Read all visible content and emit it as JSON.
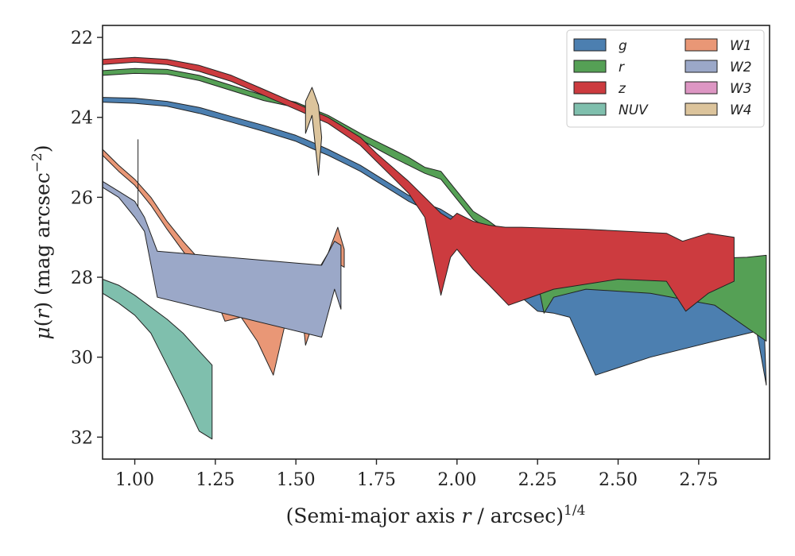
{
  "chart_data": {
    "type": "area",
    "xlabel_main": "(Semi-major axis ",
    "xlabel_r": "r",
    "xlabel_tail": " / arcsec)",
    "xlabel_sup": "1/4",
    "ylabel_mu": "μ",
    "ylabel_mid": "(",
    "ylabel_r": "r",
    "ylabel_tail": ") (mag arcsec",
    "ylabel_sup": "−2",
    "ylabel_close": ")",
    "xlim": [
      0.9,
      2.97
    ],
    "ylim": [
      32.55,
      21.7
    ],
    "y_inverted": true,
    "x_ticks": [
      1.0,
      1.25,
      1.5,
      1.75,
      2.0,
      2.25,
      2.5,
      2.75
    ],
    "x_tick_labels": [
      "1.00",
      "1.25",
      "1.50",
      "1.75",
      "2.00",
      "2.25",
      "2.50",
      "2.75"
    ],
    "y_ticks": [
      22,
      24,
      26,
      28,
      30,
      32
    ],
    "y_tick_labels": [
      "22",
      "24",
      "26",
      "28",
      "30",
      "32"
    ],
    "grid": false,
    "legend_position": "top-right",
    "series": [
      {
        "name": "g",
        "color": "#4c7fb0",
        "upper": [
          [
            0.9,
            23.5
          ],
          [
            1.0,
            23.52
          ],
          [
            1.1,
            23.6
          ],
          [
            1.2,
            23.75
          ],
          [
            1.3,
            23.98
          ],
          [
            1.4,
            24.2
          ],
          [
            1.5,
            24.45
          ],
          [
            1.55,
            24.62
          ],
          [
            1.6,
            24.8
          ],
          [
            1.65,
            25.0
          ],
          [
            1.7,
            25.2
          ],
          [
            1.75,
            25.45
          ],
          [
            1.8,
            25.7
          ],
          [
            1.85,
            25.95
          ],
          [
            1.9,
            26.15
          ],
          [
            1.95,
            26.3
          ],
          [
            2.0,
            26.55
          ],
          [
            2.05,
            26.95
          ],
          [
            2.1,
            27.2
          ],
          [
            2.15,
            27.5
          ],
          [
            2.2,
            27.7
          ],
          [
            2.3,
            27.85
          ],
          [
            2.5,
            28.0
          ],
          [
            2.7,
            28.3
          ],
          [
            2.9,
            28.4
          ],
          [
            2.95,
            28.5
          ]
        ],
        "lower": [
          [
            0.9,
            23.62
          ],
          [
            1.0,
            23.65
          ],
          [
            1.1,
            23.72
          ],
          [
            1.2,
            23.9
          ],
          [
            1.3,
            24.12
          ],
          [
            1.4,
            24.35
          ],
          [
            1.5,
            24.6
          ],
          [
            1.55,
            24.78
          ],
          [
            1.6,
            24.95
          ],
          [
            1.65,
            25.15
          ],
          [
            1.7,
            25.35
          ],
          [
            1.75,
            25.6
          ],
          [
            1.8,
            25.85
          ],
          [
            1.85,
            26.1
          ],
          [
            1.9,
            26.3
          ],
          [
            1.95,
            26.45
          ],
          [
            2.0,
            26.8
          ],
          [
            2.05,
            27.3
          ],
          [
            2.1,
            27.6
          ],
          [
            2.15,
            28.0
          ],
          [
            2.2,
            28.5
          ],
          [
            2.25,
            28.85
          ],
          [
            2.3,
            28.9
          ],
          [
            2.35,
            29.0
          ],
          [
            2.43,
            30.45
          ],
          [
            2.6,
            30.0
          ],
          [
            2.8,
            29.6
          ],
          [
            2.93,
            29.35
          ],
          [
            2.96,
            30.7
          ]
        ]
      },
      {
        "name": "r",
        "color": "#55a055",
        "upper": [
          [
            0.9,
            22.83
          ],
          [
            1.0,
            22.78
          ],
          [
            1.1,
            22.8
          ],
          [
            1.2,
            22.95
          ],
          [
            1.3,
            23.2
          ],
          [
            1.4,
            23.45
          ],
          [
            1.5,
            23.62
          ],
          [
            1.6,
            23.95
          ],
          [
            1.7,
            24.4
          ],
          [
            1.75,
            24.6
          ],
          [
            1.8,
            24.8
          ],
          [
            1.85,
            25.0
          ],
          [
            1.9,
            25.25
          ],
          [
            1.95,
            25.35
          ],
          [
            2.0,
            25.85
          ],
          [
            2.05,
            26.35
          ],
          [
            2.1,
            26.6
          ],
          [
            2.15,
            26.9
          ],
          [
            2.2,
            27.1
          ],
          [
            2.3,
            27.2
          ],
          [
            2.5,
            27.4
          ],
          [
            2.7,
            27.55
          ],
          [
            2.9,
            27.5
          ],
          [
            2.96,
            27.45
          ]
        ],
        "lower": [
          [
            0.9,
            22.95
          ],
          [
            1.0,
            22.9
          ],
          [
            1.1,
            22.92
          ],
          [
            1.2,
            23.08
          ],
          [
            1.3,
            23.33
          ],
          [
            1.4,
            23.58
          ],
          [
            1.5,
            23.75
          ],
          [
            1.6,
            24.1
          ],
          [
            1.7,
            24.55
          ],
          [
            1.75,
            24.78
          ],
          [
            1.8,
            25.0
          ],
          [
            1.85,
            25.2
          ],
          [
            1.9,
            25.4
          ],
          [
            1.95,
            25.55
          ],
          [
            2.0,
            26.05
          ],
          [
            2.05,
            26.55
          ],
          [
            2.1,
            26.8
          ],
          [
            2.15,
            27.1
          ],
          [
            2.2,
            27.4
          ],
          [
            2.25,
            28.1
          ],
          [
            2.27,
            28.9
          ],
          [
            2.3,
            28.5
          ],
          [
            2.4,
            28.3
          ],
          [
            2.6,
            28.4
          ],
          [
            2.8,
            28.7
          ],
          [
            2.96,
            29.6
          ]
        ]
      },
      {
        "name": "z",
        "color": "#cc3b3f",
        "upper": [
          [
            0.9,
            22.55
          ],
          [
            1.0,
            22.5
          ],
          [
            1.1,
            22.55
          ],
          [
            1.2,
            22.7
          ],
          [
            1.3,
            22.95
          ],
          [
            1.4,
            23.3
          ],
          [
            1.5,
            23.65
          ],
          [
            1.6,
            24.0
          ],
          [
            1.7,
            24.5
          ],
          [
            1.75,
            24.9
          ],
          [
            1.8,
            25.25
          ],
          [
            1.85,
            25.6
          ],
          [
            1.9,
            26.0
          ],
          [
            1.95,
            26.4
          ],
          [
            1.98,
            26.55
          ],
          [
            2.0,
            26.4
          ],
          [
            2.05,
            26.6
          ],
          [
            2.1,
            26.7
          ],
          [
            2.15,
            26.75
          ],
          [
            2.2,
            26.75
          ],
          [
            2.4,
            26.8
          ],
          [
            2.65,
            26.9
          ],
          [
            2.7,
            27.1
          ],
          [
            2.78,
            26.9
          ],
          [
            2.86,
            27.0
          ]
        ],
        "lower": [
          [
            0.9,
            22.68
          ],
          [
            1.0,
            22.62
          ],
          [
            1.1,
            22.68
          ],
          [
            1.2,
            22.85
          ],
          [
            1.3,
            23.1
          ],
          [
            1.4,
            23.45
          ],
          [
            1.5,
            23.8
          ],
          [
            1.6,
            24.15
          ],
          [
            1.7,
            24.7
          ],
          [
            1.75,
            25.1
          ],
          [
            1.8,
            25.5
          ],
          [
            1.85,
            25.9
          ],
          [
            1.9,
            26.5
          ],
          [
            1.95,
            28.45
          ],
          [
            1.98,
            27.5
          ],
          [
            2.0,
            27.3
          ],
          [
            2.05,
            27.8
          ],
          [
            2.1,
            28.2
          ],
          [
            2.16,
            28.7
          ],
          [
            2.3,
            28.3
          ],
          [
            2.5,
            28.05
          ],
          [
            2.65,
            28.1
          ],
          [
            2.71,
            28.85
          ],
          [
            2.78,
            28.4
          ],
          [
            2.86,
            28.1
          ]
        ]
      },
      {
        "name": "NUV",
        "color": "#7fbfad",
        "upper": [
          [
            0.9,
            28.05
          ],
          [
            0.95,
            28.2
          ],
          [
            1.0,
            28.45
          ],
          [
            1.05,
            28.75
          ],
          [
            1.1,
            29.05
          ],
          [
            1.15,
            29.4
          ],
          [
            1.2,
            29.85
          ],
          [
            1.24,
            30.2
          ]
        ],
        "lower": [
          [
            0.9,
            28.4
          ],
          [
            0.95,
            28.65
          ],
          [
            1.0,
            28.95
          ],
          [
            1.05,
            29.4
          ],
          [
            1.1,
            30.2
          ],
          [
            1.15,
            31.0
          ],
          [
            1.2,
            31.85
          ],
          [
            1.24,
            32.05
          ]
        ]
      },
      {
        "name": "W1",
        "color": "#e99776",
        "upper": [
          [
            0.9,
            24.8
          ],
          [
            0.95,
            25.2
          ],
          [
            1.0,
            25.55
          ],
          [
            1.05,
            26.0
          ],
          [
            1.1,
            26.6
          ],
          [
            1.15,
            27.1
          ],
          [
            1.2,
            27.55
          ],
          [
            1.25,
            28.0
          ],
          [
            1.3,
            28.4
          ],
          [
            1.35,
            28.75
          ],
          [
            1.4,
            29.05
          ],
          [
            1.45,
            28.8
          ],
          [
            1.5,
            28.5
          ],
          [
            1.55,
            28.3
          ],
          [
            1.57,
            27.8
          ],
          [
            1.6,
            27.4
          ],
          [
            1.63,
            26.75
          ],
          [
            1.65,
            27.3
          ]
        ],
        "lower": [
          [
            0.9,
            24.95
          ],
          [
            0.95,
            25.35
          ],
          [
            1.0,
            25.7
          ],
          [
            1.05,
            26.2
          ],
          [
            1.1,
            26.8
          ],
          [
            1.15,
            27.35
          ],
          [
            1.2,
            27.9
          ],
          [
            1.25,
            28.5
          ],
          [
            1.28,
            29.1
          ],
          [
            1.33,
            29.0
          ],
          [
            1.38,
            29.6
          ],
          [
            1.43,
            30.45
          ],
          [
            1.48,
            28.7
          ],
          [
            1.52,
            28.9
          ],
          [
            1.53,
            29.7
          ],
          [
            1.56,
            29.0
          ],
          [
            1.6,
            28.0
          ],
          [
            1.63,
            27.65
          ],
          [
            1.65,
            27.75
          ]
        ]
      },
      {
        "name": "W2",
        "color": "#9ba8c8",
        "upper": [
          [
            0.9,
            25.6
          ],
          [
            0.95,
            25.85
          ],
          [
            1.0,
            26.1
          ],
          [
            1.03,
            26.5
          ],
          [
            1.07,
            27.35
          ],
          [
            1.58,
            27.7
          ],
          [
            1.62,
            27.1
          ],
          [
            1.64,
            27.2
          ]
        ],
        "lower": [
          [
            0.9,
            25.75
          ],
          [
            0.95,
            26.0
          ],
          [
            1.0,
            26.5
          ],
          [
            1.03,
            26.85
          ],
          [
            1.07,
            28.5
          ],
          [
            1.58,
            29.5
          ],
          [
            1.62,
            28.3
          ],
          [
            1.64,
            28.8
          ]
        ]
      },
      {
        "name": "W3",
        "color": "#dd96c3",
        "upper": [],
        "lower": []
      },
      {
        "name": "W4",
        "color": "#dcc49c",
        "upper": [
          [
            1.53,
            23.6
          ],
          [
            1.55,
            23.25
          ],
          [
            1.57,
            23.7
          ],
          [
            1.58,
            24.5
          ]
        ],
        "lower": [
          [
            1.53,
            24.4
          ],
          [
            1.55,
            23.95
          ],
          [
            1.57,
            25.45
          ],
          [
            1.58,
            24.5
          ]
        ]
      }
    ],
    "vline": {
      "x": 1.01,
      "y_top": 24.55,
      "y_bottom": 26.25
    }
  }
}
